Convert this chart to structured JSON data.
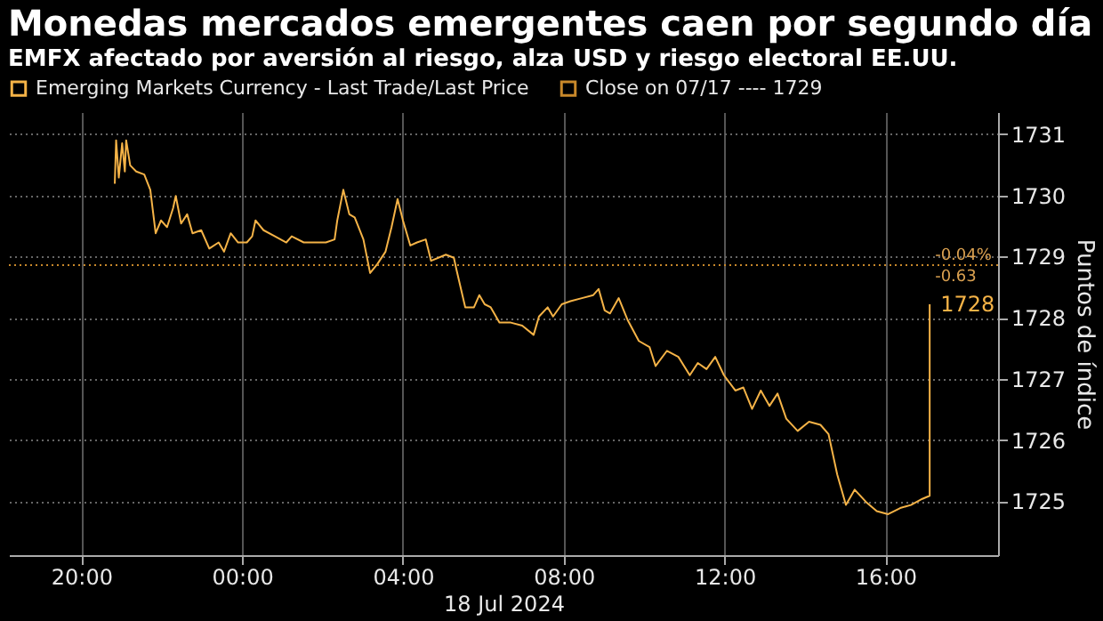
{
  "chart_data": {
    "type": "line",
    "title": "Monedas mercados emergentes caen por segundo día",
    "subtitle": "EMFX afectado por aversión al riesgo, alza USD y riesgo electoral EE.UU.",
    "xlabel": "18 Jul 2024",
    "ylabel": "Puntos de índice",
    "xlim": [
      "2024-07-17T18:12",
      "2024-07-18T18:48"
    ],
    "ylim": [
      1724.12,
      1731.36
    ],
    "xticks": [
      {
        "value": "2024-07-17T20:00",
        "label": "20:00"
      },
      {
        "value": "2024-07-18T00:00",
        "label": "00:00"
      },
      {
        "value": "2024-07-18T04:00",
        "label": "04:00"
      },
      {
        "value": "2024-07-18T08:00",
        "label": "08:00"
      },
      {
        "value": "2024-07-18T12:00",
        "label": "12:00"
      },
      {
        "value": "2024-07-18T16:00",
        "label": "16:00"
      }
    ],
    "yticks": [
      1725,
      1726,
      1727,
      1728,
      1729,
      1730,
      1731
    ],
    "grid": true,
    "legend": "top left",
    "ref_lines": [
      {
        "axis": "y",
        "value": 1728.86,
        "label": "Close on 07/17 ---- 1729",
        "color": "#c8882a",
        "line_style": "dotted"
      }
    ],
    "annotations": [
      "-0.04%",
      "-0.63",
      "1728"
    ],
    "series": [
      {
        "name": "Emerging Markets Currency - Last Trade/Last Price",
        "color": "#f5b347",
        "x": [
          "2024-07-17T20:50",
          "2024-07-17T20:52",
          "2024-07-17T20:56",
          "2024-07-17T21:01",
          "2024-07-17T21:05",
          "2024-07-17T21:07",
          "2024-07-17T21:13",
          "2024-07-17T21:22",
          "2024-07-17T21:34",
          "2024-07-17T21:43",
          "2024-07-17T21:51",
          "2024-07-17T21:59",
          "2024-07-17T22:08",
          "2024-07-17T22:17",
          "2024-07-17T22:21",
          "2024-07-17T22:29",
          "2024-07-17T22:38",
          "2024-07-17T22:46",
          "2024-07-17T22:59",
          "2024-07-17T23:11",
          "2024-07-17T23:25",
          "2024-07-17T23:33",
          "2024-07-17T23:43",
          "2024-07-17T23:54",
          "2024-07-18T00:07",
          "2024-07-18T00:15",
          "2024-07-18T00:20",
          "2024-07-18T00:32",
          "2024-07-18T00:49",
          "2024-07-18T01:06",
          "2024-07-18T01:14",
          "2024-07-18T01:32",
          "2024-07-18T01:49",
          "2024-07-18T02:05",
          "2024-07-18T02:18",
          "2024-07-18T02:22",
          "2024-07-18T02:31",
          "2024-07-18T02:40",
          "2024-07-18T02:48",
          "2024-07-18T03:01",
          "2024-07-18T03:11",
          "2024-07-18T03:22",
          "2024-07-18T03:34",
          "2024-07-18T03:43",
          "2024-07-18T03:52",
          "2024-07-18T04:00",
          "2024-07-18T04:11",
          "2024-07-18T04:21",
          "2024-07-18T04:34",
          "2024-07-18T04:42",
          "2024-07-18T05:04",
          "2024-07-18T05:16",
          "2024-07-18T05:20",
          "2024-07-18T05:33",
          "2024-07-18T05:46",
          "2024-07-18T05:54",
          "2024-07-18T06:02",
          "2024-07-18T06:11",
          "2024-07-18T06:24",
          "2024-07-18T06:41",
          "2024-07-18T06:58",
          "2024-07-18T07:15",
          "2024-07-18T07:23",
          "2024-07-18T07:36",
          "2024-07-18T07:44",
          "2024-07-18T07:57",
          "2024-07-18T08:10",
          "2024-07-18T08:27",
          "2024-07-18T08:44",
          "2024-07-18T08:52",
          "2024-07-18T09:01",
          "2024-07-18T09:09",
          "2024-07-18T09:22",
          "2024-07-18T09:35",
          "2024-07-18T09:52",
          "2024-07-18T10:08",
          "2024-07-18T10:17",
          "2024-07-18T10:34",
          "2024-07-18T10:51",
          "2024-07-18T11:08",
          "2024-07-18T11:20",
          "2024-07-18T11:33",
          "2024-07-18T11:46",
          "2024-07-18T11:59",
          "2024-07-18T12:16",
          "2024-07-18T12:28",
          "2024-07-18T12:41",
          "2024-07-18T12:54",
          "2024-07-18T13:07",
          "2024-07-18T13:19",
          "2024-07-18T13:32",
          "2024-07-18T13:49",
          "2024-07-18T14:06",
          "2024-07-18T14:23",
          "2024-07-18T14:35",
          "2024-07-18T14:48",
          "2024-07-18T15:01",
          "2024-07-18T15:14",
          "2024-07-18T15:31",
          "2024-07-18T15:47",
          "2024-07-18T16:04",
          "2024-07-18T16:22",
          "2024-07-18T16:38",
          "2024-07-18T16:55",
          "2024-07-18T17:06",
          "2024-07-18T17:06"
        ],
        "values": [
          1730.19,
          1730.9,
          1730.29,
          1730.85,
          1730.39,
          1730.9,
          1730.49,
          1730.39,
          1730.34,
          1730.09,
          1729.38,
          1729.59,
          1729.48,
          1729.79,
          1729.99,
          1729.54,
          1729.69,
          1729.38,
          1729.43,
          1729.13,
          1729.23,
          1729.08,
          1729.38,
          1729.23,
          1729.23,
          1729.33,
          1729.59,
          1729.43,
          1729.33,
          1729.23,
          1729.33,
          1729.23,
          1729.23,
          1729.23,
          1729.28,
          1729.59,
          1730.09,
          1729.69,
          1729.64,
          1729.28,
          1728.73,
          1728.88,
          1729.08,
          1729.48,
          1729.94,
          1729.59,
          1729.18,
          1729.23,
          1729.28,
          1728.93,
          1729.03,
          1728.98,
          1728.78,
          1728.17,
          1728.17,
          1728.37,
          1728.22,
          1728.17,
          1727.92,
          1727.92,
          1727.87,
          1727.72,
          1728.02,
          1728.17,
          1728.02,
          1728.22,
          1728.27,
          1728.32,
          1728.37,
          1728.47,
          1728.12,
          1728.07,
          1728.32,
          1727.97,
          1727.62,
          1727.52,
          1727.21,
          1727.46,
          1727.36,
          1727.06,
          1727.26,
          1727.16,
          1727.36,
          1727.06,
          1726.81,
          1726.86,
          1726.51,
          1726.81,
          1726.56,
          1726.76,
          1726.35,
          1726.15,
          1726.3,
          1726.25,
          1726.1,
          1725.44,
          1724.94,
          1725.19,
          1724.99,
          1724.84,
          1724.79,
          1724.89,
          1724.94,
          1725.04,
          1725.09,
          1728.22
        ]
      }
    ]
  }
}
